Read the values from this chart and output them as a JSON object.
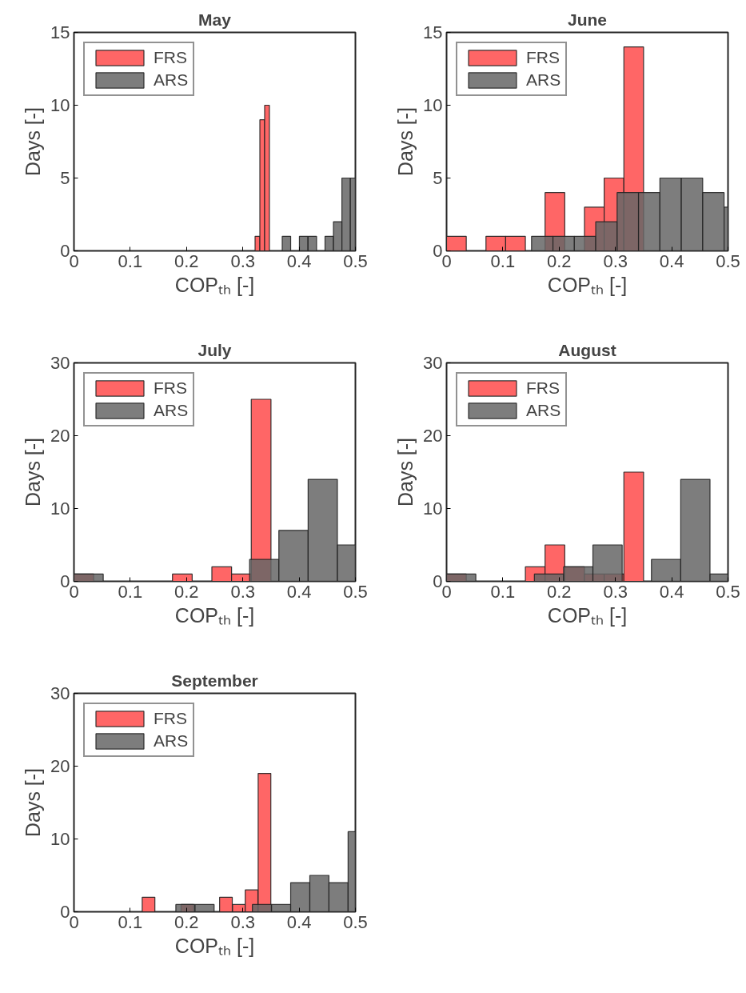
{
  "chart_data": [
    {
      "type": "bar",
      "title": "May",
      "xlabel": "COPₜₕ [-]",
      "ylabel": "Days [-]",
      "xlim": [
        0,
        0.5
      ],
      "ylim": [
        0,
        15
      ],
      "xticks": [
        0,
        0.1,
        0.2,
        0.3,
        0.4,
        0.5
      ],
      "yticks": [
        0,
        5,
        10,
        15
      ],
      "grid": false,
      "legend": "top left",
      "series": [
        {
          "name": "FRS",
          "color": "#ff6666",
          "x": [
            0.326,
            0.3345,
            0.343
          ],
          "values": [
            1,
            9,
            10
          ]
        },
        {
          "name": "ARS",
          "color": "#666666",
          "x": [
            0.3775,
            0.408,
            0.4235,
            0.4535,
            0.4685,
            0.4835,
            0.4955
          ],
          "values": [
            1,
            1,
            1,
            1,
            2,
            5,
            5
          ]
        }
      ]
    },
    {
      "type": "bar",
      "title": "June",
      "xlabel": "COPₜₕ [-]",
      "ylabel": "Days [-]",
      "xlim": [
        0,
        0.5
      ],
      "ylim": [
        0,
        15
      ],
      "xticks": [
        0,
        0.1,
        0.2,
        0.3,
        0.4,
        0.5
      ],
      "yticks": [
        0,
        5,
        10,
        15
      ],
      "grid": false,
      "legend": "top left",
      "series": [
        {
          "name": "FRS",
          "color": "#ff6666",
          "x": [
            0.0175,
            0.0875,
            0.1225,
            0.1925,
            0.2625,
            0.2975,
            0.3325
          ],
          "values": [
            1,
            1,
            1,
            4,
            3,
            5,
            14
          ]
        },
        {
          "name": "ARS",
          "color": "#666666",
          "x": [
            0.17,
            0.208,
            0.246,
            0.284,
            0.322,
            0.36,
            0.398,
            0.436,
            0.474,
            0.4965
          ],
          "values": [
            1,
            1,
            1,
            2,
            4,
            4,
            5,
            5,
            4,
            3
          ]
        }
      ]
    },
    {
      "type": "bar",
      "title": "July",
      "xlabel": "COPₜₕ [-]",
      "ylabel": "Days [-]",
      "xlim": [
        0,
        0.5
      ],
      "ylim": [
        0,
        30
      ],
      "xticks": [
        0,
        0.1,
        0.2,
        0.3,
        0.4,
        0.5
      ],
      "yticks": [
        0,
        10,
        20,
        30
      ],
      "grid": false,
      "legend": "top left",
      "series": [
        {
          "name": "FRS",
          "color": "#ff6666",
          "x": [
            0.0175,
            0.1925,
            0.2625,
            0.2975,
            0.3325
          ],
          "values": [
            1,
            1,
            2,
            1,
            25
          ]
        },
        {
          "name": "ARS",
          "color": "#666666",
          "x": [
            0.026,
            0.338,
            0.39,
            0.442,
            0.484
          ],
          "values": [
            1,
            3,
            7,
            14,
            5
          ]
        }
      ]
    },
    {
      "type": "bar",
      "title": "August",
      "xlabel": "COPₜₕ [-]",
      "ylabel": "Days [-]",
      "xlim": [
        0,
        0.5
      ],
      "ylim": [
        0,
        30
      ],
      "xticks": [
        0,
        0.1,
        0.2,
        0.3,
        0.4,
        0.5
      ],
      "yticks": [
        0,
        10,
        20,
        30
      ],
      "grid": false,
      "legend": "top left",
      "series": [
        {
          "name": "FRS",
          "color": "#ff6666",
          "x": [
            0.0175,
            0.1575,
            0.1925,
            0.2275,
            0.2625,
            0.2975,
            0.3325
          ],
          "values": [
            1,
            2,
            5,
            2,
            1,
            1,
            15
          ]
        },
        {
          "name": "ARS",
          "color": "#666666",
          "x": [
            0.026,
            0.182,
            0.234,
            0.286,
            0.39,
            0.442,
            0.484
          ],
          "values": [
            1,
            1,
            2,
            5,
            3,
            14,
            1
          ]
        }
      ]
    },
    {
      "type": "bar",
      "title": "September",
      "xlabel": "COPₜₕ [-]",
      "ylabel": "Days [-]",
      "xlim": [
        0,
        0.5
      ],
      "ylim": [
        0,
        30
      ],
      "xticks": [
        0,
        0.1,
        0.2,
        0.3,
        0.4,
        0.5
      ],
      "yticks": [
        0,
        10,
        20,
        30
      ],
      "grid": false,
      "legend": "top left",
      "series": [
        {
          "name": "FRS",
          "color": "#ff6666",
          "x": [
            0.1325,
            0.2015,
            0.27,
            0.293,
            0.3155,
            0.3385
          ],
          "values": [
            2,
            1,
            2,
            1,
            3,
            19
          ]
        },
        {
          "name": "ARS",
          "color": "#666666",
          "x": [
            0.198,
            0.232,
            0.334,
            0.368,
            0.402,
            0.436,
            0.47,
            0.4935
          ],
          "values": [
            1,
            1,
            1,
            1,
            4,
            5,
            4,
            11
          ]
        }
      ]
    }
  ]
}
